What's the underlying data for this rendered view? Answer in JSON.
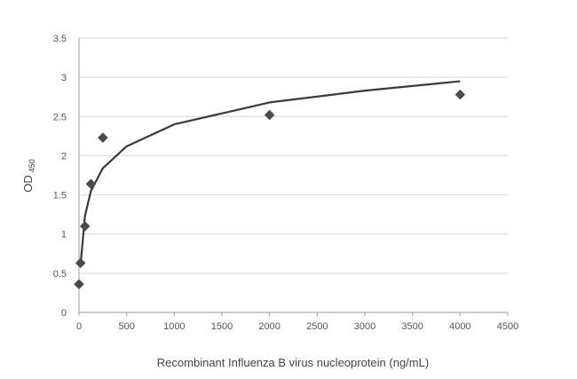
{
  "chart_data": {
    "type": "scatter",
    "title": "",
    "xlabel": "Recombinant Influenza B virus nucleoprotein  (ng/mL)",
    "ylabel": "OD",
    "ylabel_subscript": "450",
    "xlim": [
      0,
      4500
    ],
    "ylim": [
      0,
      3.5
    ],
    "x_ticks": [
      "0",
      "500",
      "1000",
      "1500",
      "2000",
      "2500",
      "3000",
      "3500",
      "4000",
      "4500"
    ],
    "y_ticks": [
      "0",
      "0.5",
      "1",
      "1.5",
      "2",
      "2.5",
      "3",
      "3.5"
    ],
    "grid": "horizontal",
    "legend": "none",
    "series": [
      {
        "marker": "diamond",
        "color": "#4a4a4a",
        "x": [
          0,
          15.6,
          62.5,
          125,
          250,
          2000,
          4000
        ],
        "y": [
          0.36,
          0.63,
          1.1,
          1.64,
          2.23,
          2.52,
          2.78
        ]
      }
    ],
    "trendline": {
      "type": "logarithmic",
      "color": "#3a3a3a",
      "x": [
        15.6,
        62.5,
        125,
        250,
        500,
        1000,
        2000,
        3000,
        4000
      ],
      "y": [
        0.6,
        1.23,
        1.55,
        1.84,
        2.12,
        2.4,
        2.68,
        2.83,
        2.95
      ]
    }
  }
}
